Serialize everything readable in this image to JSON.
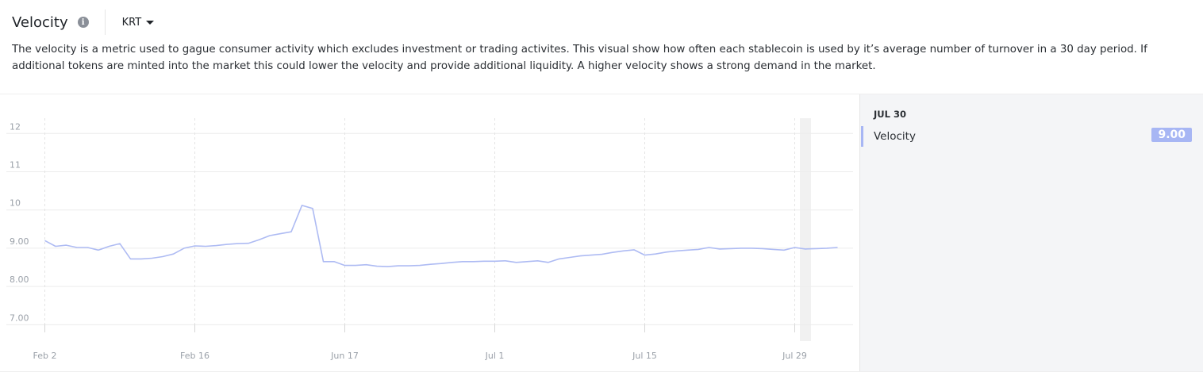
{
  "header": {
    "title": "Velocity",
    "info_icon": "info-icon",
    "token": "KRT"
  },
  "description": "The velocity is a metric used to gague consumer activity which excludes investment or trading activites. This visual show how often each stablecoin is used by it’s average number of turnover in a 30 day period. If additional tokens are minted into the market this could lower the velocity and provide additional liquidity. A higher velocity shows a strong demand in the market.",
  "tooltip": {
    "date": "JUL 30",
    "series_label": "Velocity",
    "value": "9.00"
  },
  "colors": {
    "line": "#aebbf3",
    "accent": "#a7b6f4"
  },
  "chart_data": {
    "type": "line",
    "title": "",
    "xlabel": "",
    "ylabel": "",
    "ylim": [
      6.8,
      12.4
    ],
    "y_ticks": [
      "7.00",
      "8.00",
      "9.00",
      "10",
      "11",
      "12"
    ],
    "y_tick_values": [
      7,
      8,
      9,
      10,
      11,
      12
    ],
    "x_tick_labels": [
      "Feb 2",
      "Feb 16",
      "Jun 17",
      "Jul 1",
      "Jul 15",
      "Jul 29"
    ],
    "x_tick_index": [
      1,
      15,
      29,
      43,
      57,
      71
    ],
    "highlight_index": 72,
    "grid": true,
    "series": [
      {
        "name": "Velocity",
        "values": [
          9.2,
          9.05,
          9.08,
          9.02,
          9.02,
          8.95,
          9.05,
          9.12,
          8.72,
          8.72,
          8.74,
          8.78,
          8.85,
          9.0,
          9.06,
          9.05,
          9.07,
          9.1,
          9.12,
          9.13,
          9.22,
          9.33,
          9.38,
          9.43,
          10.12,
          10.04,
          8.65,
          8.65,
          8.55,
          8.55,
          8.57,
          8.53,
          8.52,
          8.54,
          8.54,
          8.55,
          8.58,
          8.6,
          8.63,
          8.65,
          8.65,
          8.66,
          8.66,
          8.67,
          8.63,
          8.65,
          8.67,
          8.63,
          8.72,
          8.76,
          8.8,
          8.82,
          8.84,
          8.89,
          8.93,
          8.96,
          8.82,
          8.85,
          8.9,
          8.93,
          8.95,
          8.97,
          9.02,
          8.98,
          8.99,
          9.0,
          9.0,
          8.99,
          8.97,
          8.95,
          9.02,
          8.98,
          8.99,
          9.0,
          9.02
        ]
      }
    ]
  }
}
